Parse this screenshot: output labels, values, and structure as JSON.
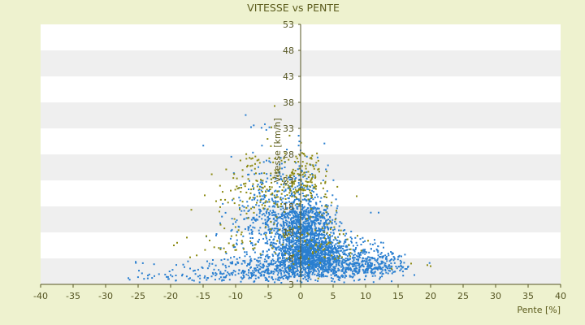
{
  "chart_data": {
    "type": "scatter",
    "title": "VITESSE vs PENTE",
    "xlabel": "Pente [%]",
    "ylabel": "Vitesse [km/h]",
    "xlim": [
      -40,
      40
    ],
    "ylim": [
      3,
      53
    ],
    "x_ticks": [
      "-40",
      "-35",
      "-30",
      "-25",
      "-20",
      "-15",
      "-10",
      "-5",
      "0",
      "5",
      "10",
      "15",
      "20",
      "25",
      "30",
      "35",
      "40"
    ],
    "y_ticks": [
      "53",
      "48",
      "43",
      "38",
      "33",
      "28",
      "23",
      "18",
      "13",
      "8",
      "3"
    ],
    "grid": "horizontal alternating bands",
    "legend": "none",
    "colors": {
      "background": "#eef2cf",
      "band_light": "#ffffff",
      "band_dark": "#efefef",
      "axis": "#555522",
      "series_blue": "#2a7fd0",
      "series_olive": "#8c8a12"
    },
    "series": [
      {
        "color": "#2a7fd0",
        "clusters": [
          {
            "cx": 1.0,
            "cy": 10.5,
            "sx": 2.4,
            "sy": 4.2,
            "count": 1500
          },
          {
            "cx": -2.5,
            "cy": 6.0,
            "sx": 5.5,
            "sy": 2.0,
            "count": 500
          },
          {
            "cx": 6.0,
            "cy": 7.0,
            "sx": 3.8,
            "sy": 2.2,
            "count": 450
          },
          {
            "cx": -1.0,
            "cy": 17.0,
            "sx": 2.5,
            "sy": 4.5,
            "count": 350
          },
          {
            "cx": -5.5,
            "cy": 16.0,
            "sx": 2.8,
            "sy": 6.5,
            "count": 250
          },
          {
            "cx": 12.0,
            "cy": 6.5,
            "sx": 2.2,
            "sy": 1.8,
            "count": 150
          },
          {
            "cx": -15.0,
            "cy": 4.8,
            "sx": 5.0,
            "sy": 1.2,
            "count": 90
          }
        ],
        "points": [
          [
            -26.5,
            4.2
          ],
          [
            -26.3,
            3.9
          ],
          [
            -23.5,
            4.7
          ],
          [
            -22.5,
            4.6
          ],
          [
            -20.0,
            4.8
          ],
          [
            -17.0,
            4.2
          ],
          [
            -16.5,
            5.6
          ],
          [
            -14.5,
            12.2
          ],
          [
            -13.0,
            12.4
          ],
          [
            -10.5,
            19.2
          ],
          [
            -9.5,
            21.5
          ],
          [
            -5.5,
            33.8
          ],
          [
            -4.8,
            33.2
          ],
          [
            -0.3,
            31.6
          ],
          [
            -0.2,
            30.5
          ],
          [
            10.8,
            16.8
          ],
          [
            12.0,
            16.8
          ],
          [
            15.5,
            7.3
          ],
          [
            17.5,
            4.8
          ],
          [
            14.0,
            3.6
          ]
        ]
      },
      {
        "color": "#8c8a12",
        "clusters": [
          {
            "cx": -6.0,
            "cy": 22.0,
            "sx": 3.5,
            "sy": 4.5,
            "count": 140
          },
          {
            "cx": 0.5,
            "cy": 23.0,
            "sx": 2.0,
            "sy": 3.5,
            "count": 130
          },
          {
            "cx": 2.5,
            "cy": 11.0,
            "sx": 3.0,
            "sy": 4.0,
            "count": 90
          },
          {
            "cx": -8.0,
            "cy": 11.0,
            "sx": 4.5,
            "sy": 3.0,
            "count": 45
          }
        ],
        "points": [
          [
            -4.0,
            37.3
          ],
          [
            -4.5,
            33.2
          ],
          [
            -12.0,
            20.8
          ],
          [
            -12.5,
            17.0
          ],
          [
            -13.0,
            19.0
          ],
          [
            -17.5,
            12.0
          ],
          [
            -19.0,
            11.0
          ],
          [
            -19.5,
            10.5
          ],
          [
            -14.5,
            12.3
          ],
          [
            -17.0,
            8.2
          ],
          [
            19.5,
            6.7
          ],
          [
            20.0,
            6.5
          ],
          [
            17.0,
            7.0
          ],
          [
            14.0,
            6.0
          ]
        ]
      }
    ]
  }
}
